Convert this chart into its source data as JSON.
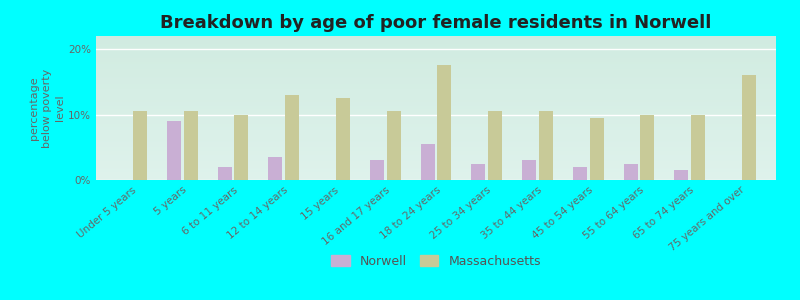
{
  "title": "Breakdown by age of poor female residents in Norwell",
  "ylabel": "percentage\nbelow poverty\nlevel",
  "categories": [
    "Under 5 years",
    "5 years",
    "6 to 11 years",
    "12 to 14 years",
    "15 years",
    "16 and 17 years",
    "18 to 24 years",
    "25 to 34 years",
    "35 to 44 years",
    "45 to 54 years",
    "55 to 64 years",
    "65 to 74 years",
    "75 years and over"
  ],
  "norwell": [
    0,
    9.0,
    2.0,
    3.5,
    0,
    3.0,
    5.5,
    2.5,
    3.0,
    2.0,
    2.5,
    1.5,
    0
  ],
  "massachusetts": [
    10.5,
    10.5,
    10.0,
    13.0,
    12.5,
    10.5,
    17.5,
    10.5,
    10.5,
    9.5,
    10.0,
    10.0,
    16.0
  ],
  "norwell_color": "#c9afd4",
  "massachusetts_color": "#c8ca98",
  "plot_bg_top": "#f0f8f0",
  "plot_bg_bottom": "#d8f0e8",
  "outer_background": "#00ffff",
  "ylim": [
    0,
    22
  ],
  "yticks": [
    0,
    10,
    20
  ],
  "ytick_labels": [
    "0%",
    "10%",
    "20%"
  ],
  "title_fontsize": 13,
  "axis_label_fontsize": 8,
  "tick_fontsize": 7.5,
  "legend_fontsize": 9,
  "bar_width": 0.28,
  "bar_gap": 0.05
}
